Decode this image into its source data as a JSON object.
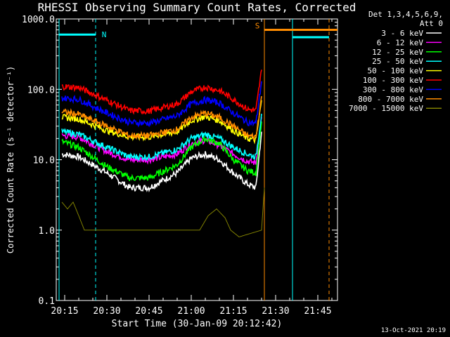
{
  "footer_date": "13-Oct-2021 20:19",
  "chart_data": {
    "type": "line",
    "title": "RHESSI Observing Summary Count Rates, Corrected",
    "xlabel": "Start Time (30-Jan-09 20:12:42)",
    "ylabel": "Corrected Count Rate (s⁻¹ detector⁻¹)",
    "y_scale": "log",
    "ylim": [
      0.1,
      1000
    ],
    "y_ticks": [
      "0.1",
      "1.0",
      "10.0",
      "100.0",
      "1000.0"
    ],
    "xlim": [
      "20:12",
      "21:52"
    ],
    "x_ticks": [
      "20:15",
      "20:30",
      "20:45",
      "21:00",
      "21:15",
      "21:30",
      "21:45"
    ],
    "legend_header": [
      "Det 1,3,4,5,6,9,",
      "Att 0"
    ],
    "legend_position": "right",
    "background": "#000000",
    "axis_color": "#ffffff",
    "series": [
      {
        "name": "3 - 6 keV",
        "color": "#ffffff",
        "x": [
          "20:14",
          "20:20",
          "20:30",
          "20:38",
          "20:45",
          "20:55",
          "21:00",
          "21:05",
          "21:10",
          "21:15",
          "21:20",
          "21:23",
          "21:25"
        ],
        "y": [
          12,
          11,
          6.5,
          4,
          4,
          6.5,
          10.5,
          12,
          10,
          6.5,
          4.5,
          4,
          25
        ]
      },
      {
        "name": "6 - 12 keV",
        "color": "#ff00ff",
        "x": [
          "20:14",
          "20:20",
          "20:30",
          "20:38",
          "20:45",
          "20:55",
          "21:00",
          "21:05",
          "21:10",
          "21:15",
          "21:20",
          "21:23",
          "21:25"
        ],
        "y": [
          22,
          21,
          13,
          10,
          10,
          12,
          17,
          19,
          16,
          12,
          9.5,
          9,
          40
        ]
      },
      {
        "name": "12 - 25 keV",
        "color": "#00ff00",
        "x": [
          "20:14",
          "20:20",
          "20:30",
          "20:38",
          "20:45",
          "20:55",
          "21:00",
          "21:05",
          "21:10",
          "21:15",
          "21:20",
          "21:23",
          "21:25"
        ],
        "y": [
          18,
          15,
          8,
          5.5,
          5.5,
          8.5,
          15,
          20,
          17,
          10,
          7,
          6.5,
          35
        ]
      },
      {
        "name": "25 - 50 keV",
        "color": "#00ffff",
        "x": [
          "20:14",
          "20:20",
          "20:30",
          "20:38",
          "20:45",
          "20:55",
          "21:00",
          "21:05",
          "21:10",
          "21:15",
          "21:20",
          "21:23",
          "21:25"
        ],
        "y": [
          25,
          23,
          15,
          11,
          11,
          14,
          20,
          23,
          20,
          15,
          12,
          11,
          45
        ]
      },
      {
        "name": "50 - 100 keV",
        "color": "#ffff00",
        "x": [
          "20:14",
          "20:20",
          "20:30",
          "20:38",
          "20:45",
          "20:55",
          "21:00",
          "21:05",
          "21:10",
          "21:15",
          "21:20",
          "21:23",
          "21:25"
        ],
        "y": [
          40,
          38,
          26,
          21,
          21,
          25,
          36,
          41,
          36,
          26,
          20,
          19,
          70
        ]
      },
      {
        "name": "100 - 300 keV",
        "color": "#ff0000",
        "x": [
          "20:14",
          "20:20",
          "20:30",
          "20:38",
          "20:45",
          "20:55",
          "21:00",
          "21:05",
          "21:10",
          "21:15",
          "21:20",
          "21:23",
          "21:25"
        ],
        "y": [
          110,
          106,
          70,
          50,
          49,
          62,
          92,
          108,
          96,
          72,
          52,
          50,
          190
        ]
      },
      {
        "name": "300 - 800 keV",
        "color": "#0000ff",
        "x": [
          "20:14",
          "20:20",
          "20:30",
          "20:38",
          "20:45",
          "20:55",
          "21:00",
          "21:05",
          "21:10",
          "21:15",
          "21:20",
          "21:23",
          "21:25"
        ],
        "y": [
          75,
          72,
          46,
          34,
          33,
          42,
          62,
          71,
          64,
          46,
          34,
          33,
          130
        ]
      },
      {
        "name": "800 - 7000 keV",
        "color": "#ff8c00",
        "x": [
          "20:14",
          "20:20",
          "20:30",
          "20:38",
          "20:45",
          "20:55",
          "21:00",
          "21:05",
          "21:10",
          "21:15",
          "21:20",
          "21:23",
          "21:25"
        ],
        "y": [
          48,
          44,
          30,
          22,
          22,
          27,
          40,
          46,
          40,
          30,
          22,
          21,
          80
        ]
      },
      {
        "name": "7000 - 15000 keV",
        "color": "#808000",
        "x": [
          "20:14",
          "20:16",
          "20:18",
          "20:20",
          "20:22",
          "20:24",
          "20:26",
          "21:03",
          "21:06",
          "21:09",
          "21:12",
          "21:14",
          "21:17",
          "21:25",
          "21:26"
        ],
        "y": [
          2.5,
          2.0,
          2.5,
          1.6,
          1.0,
          1.0,
          1.0,
          1.0,
          1.6,
          2.0,
          1.5,
          1.0,
          0.8,
          1.0,
          4.0
        ]
      }
    ],
    "annotations": [
      {
        "label": "N",
        "color": "#00ffff",
        "bar_x": [
          "20:13",
          "20:26"
        ],
        "y": 600,
        "dash_x": "20:26"
      },
      {
        "label": "S",
        "color": "#ff8c00",
        "bar_x": [
          "21:26",
          "21:52"
        ],
        "y": 700,
        "line_x": "21:26"
      }
    ],
    "vertical_lines": [
      {
        "x": "20:13",
        "color": "#00ffff",
        "style": "solid"
      },
      {
        "x": "20:26",
        "color": "#00ffff",
        "style": "dashed"
      },
      {
        "x": "21:26",
        "color": "#ff8c00",
        "style": "solid"
      },
      {
        "x": "21:36",
        "color": "#00ffff",
        "style": "solid"
      },
      {
        "x": "21:49",
        "color": "#ff8c00",
        "style": "dashed"
      }
    ],
    "extra_bars": [
      {
        "color": "#00ffff",
        "x": [
          "21:36",
          "21:49"
        ],
        "y": 550
      }
    ]
  }
}
